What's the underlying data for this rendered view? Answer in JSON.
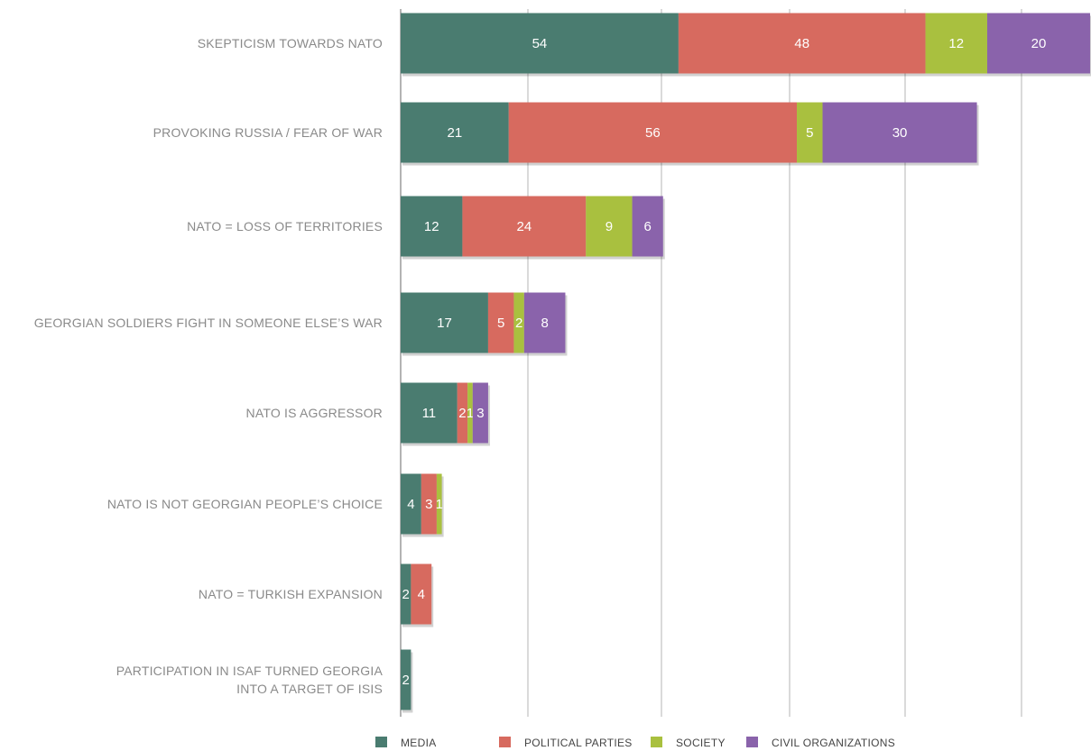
{
  "chart_data": {
    "type": "bar",
    "orientation": "horizontal",
    "stacked": true,
    "categories": [
      [
        "SKEPTICISM TOWARDS NATO"
      ],
      [
        "PROVOKING RUSSIA / FEAR OF WAR"
      ],
      [
        "NATO = LOSS OF TERRITORIES"
      ],
      [
        "GEORGIAN SOLDIERS FIGHT IN SOMEONE ELSE’S WAR"
      ],
      [
        "NATO IS AGGRESSOR"
      ],
      [
        "NATO IS NOT GEORGIAN PEOPLE’S CHOICE"
      ],
      [
        "NATO = TURKISH EXPANSION"
      ],
      [
        "PARTICIPATION IN ISAF TURNED GEORGIA",
        "INTO A TARGET OF ISIS"
      ]
    ],
    "series": [
      {
        "name": "MEDIA",
        "color": "#4a7c70",
        "values": [
          54,
          21,
          12,
          17,
          11,
          4,
          2,
          2
        ]
      },
      {
        "name": "POLITICAL PARTIES",
        "color": "#d76a5f",
        "values": [
          48,
          56,
          24,
          5,
          2,
          3,
          4,
          0
        ]
      },
      {
        "name": "SOCIETY",
        "color": "#a9c03f",
        "values": [
          12,
          5,
          9,
          2,
          1,
          1,
          0,
          0
        ]
      },
      {
        "name": "CIVIL ORGANIZATIONS",
        "color": "#8a63ab",
        "values": [
          20,
          30,
          6,
          8,
          3,
          0,
          0,
          0
        ]
      }
    ],
    "grid": true,
    "legend": "bottom"
  }
}
